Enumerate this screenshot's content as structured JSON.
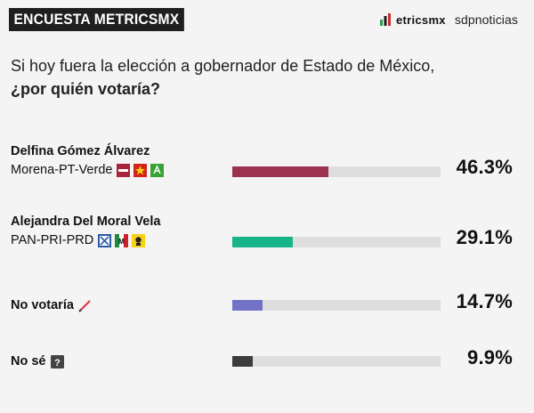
{
  "header": {
    "tag": "ENCUESTA METRICSMX",
    "logo_text": "etricsmx",
    "site": "sdpnoticias"
  },
  "question": {
    "line1": "Si hoy fuera la elección a gobernador de Estado de México,",
    "line2": "¿por quién votaría?"
  },
  "chart_data": {
    "type": "bar",
    "title": "Si hoy fuera la elección a gobernador de Estado de México, ¿por quién votaría?",
    "unit": "%",
    "xlim": [
      0,
      100
    ],
    "categories": [
      "Delfina Gómez Álvarez",
      "Alejandra Del Moral Vela",
      "No votaría",
      "No sé"
    ],
    "subtitles": [
      "Morena-PT-Verde",
      "PAN-PRI-PRD",
      "",
      ""
    ],
    "values": [
      46.3,
      29.1,
      14.7,
      9.9
    ],
    "labels": [
      "46.3%",
      "29.1%",
      "14.7%",
      "9.9%"
    ],
    "colors": [
      "#9b3350",
      "#17b389",
      "#7272c8",
      "#3c3c3c"
    ],
    "track_color": "#dedede",
    "icons": [
      [
        "morena-icon",
        "pt-icon",
        "verde-icon"
      ],
      [
        "pan-icon",
        "pri-icon",
        "prd-icon"
      ],
      [
        "crossed-pencil-icon"
      ],
      [
        "question-mark-icon"
      ]
    ]
  }
}
